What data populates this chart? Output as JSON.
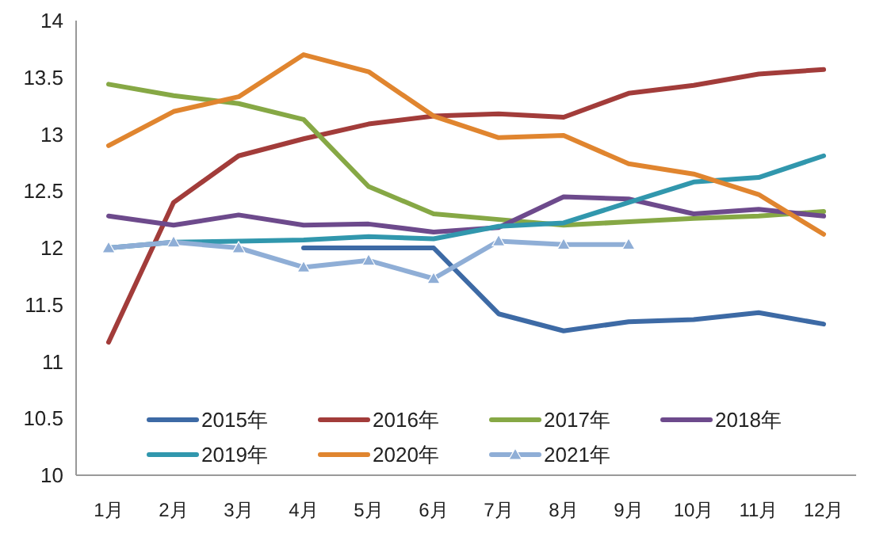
{
  "chart_data": {
    "type": "line",
    "categories": [
      "1月",
      "2月",
      "3月",
      "4月",
      "5月",
      "6月",
      "7月",
      "8月",
      "9月",
      "10月",
      "11月",
      "12月"
    ],
    "ylim": [
      10,
      14
    ],
    "yticks": [
      10,
      10.5,
      11,
      11.5,
      12,
      12.5,
      13,
      13.5,
      14
    ],
    "grid": false,
    "legend": "bottom",
    "marker": "none",
    "line_style": "solid",
    "series": [
      {
        "name": "2015年",
        "color": "#3d6aa5",
        "values": [
          null,
          null,
          null,
          12.0,
          12.0,
          12.0,
          11.42,
          11.27,
          11.35,
          11.37,
          11.43,
          11.33
        ]
      },
      {
        "name": "2016年",
        "color": "#a23c3a",
        "values": [
          11.17,
          12.4,
          12.81,
          12.96,
          13.09,
          13.16,
          13.18,
          13.15,
          13.36,
          13.43,
          13.53,
          13.57
        ]
      },
      {
        "name": "2017年",
        "color": "#86a845",
        "values": [
          13.44,
          13.34,
          13.27,
          13.13,
          12.54,
          12.3,
          12.25,
          12.2,
          12.23,
          12.26,
          12.28,
          12.32
        ]
      },
      {
        "name": "2018年",
        "color": "#6d4a8c",
        "values": [
          12.28,
          12.2,
          12.29,
          12.2,
          12.21,
          12.14,
          12.18,
          12.45,
          12.43,
          12.3,
          12.34,
          12.28
        ]
      },
      {
        "name": "2019年",
        "color": "#3197ad",
        "values": [
          12.0,
          12.05,
          12.06,
          12.07,
          12.1,
          12.08,
          12.19,
          12.22,
          12.4,
          12.58,
          12.62,
          12.81
        ]
      },
      {
        "name": "2020年",
        "color": "#e0852f",
        "values": [
          12.9,
          13.2,
          13.33,
          13.7,
          13.55,
          13.16,
          12.97,
          12.99,
          12.74,
          12.65,
          12.47,
          12.12
        ]
      },
      {
        "name": "2021年",
        "color": "#8faed6",
        "marker": "triangle",
        "values": [
          12.0,
          12.05,
          12.0,
          11.83,
          11.89,
          11.73,
          12.06,
          12.03,
          12.03,
          null,
          null,
          null
        ]
      }
    ]
  }
}
